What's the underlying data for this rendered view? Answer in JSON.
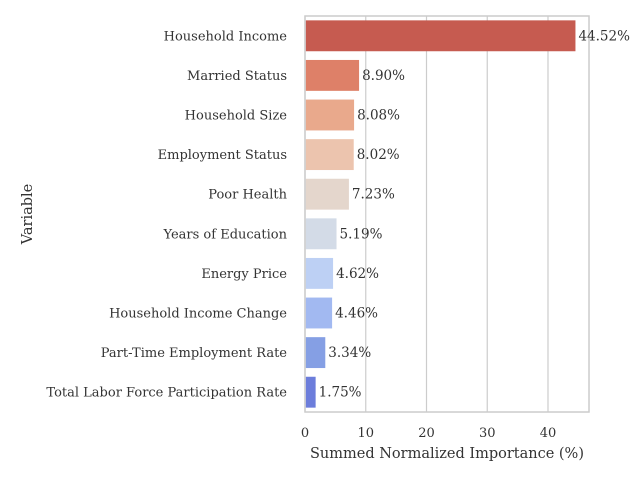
{
  "chart_data": {
    "type": "bar",
    "orientation": "horizontal",
    "categories": [
      "Household Income",
      "Married Status",
      "Household Size",
      "Employment Status",
      "Poor Health",
      "Years of Education",
      "Energy Price",
      "Household Income Change",
      "Part-Time Employment Rate",
      "Total Labor Force Participation Rate"
    ],
    "values": [
      44.52,
      8.9,
      8.08,
      8.02,
      7.23,
      5.19,
      4.62,
      4.46,
      3.34,
      1.75
    ],
    "value_labels": [
      "44.52%",
      "8.90%",
      "8.08%",
      "8.02%",
      "7.23%",
      "5.19%",
      "4.62%",
      "4.46%",
      "3.34%",
      "1.75%"
    ],
    "colors": [
      "#c65b50",
      "#de8068",
      "#e9a98c",
      "#ecc4ae",
      "#e4d6cc",
      "#d3dbe7",
      "#bdd0f4",
      "#a2b9f1",
      "#859fe4",
      "#6c7ddb"
    ],
    "xlabel": "Summed Normalized Importance (%)",
    "ylabel": "Variable",
    "xlim": [
      0,
      46.75
    ],
    "xticks": [
      0,
      10,
      20,
      30,
      40
    ],
    "grid": "vertical",
    "frame_color": "#cccccc",
    "grid_color": "#cccccc"
  }
}
